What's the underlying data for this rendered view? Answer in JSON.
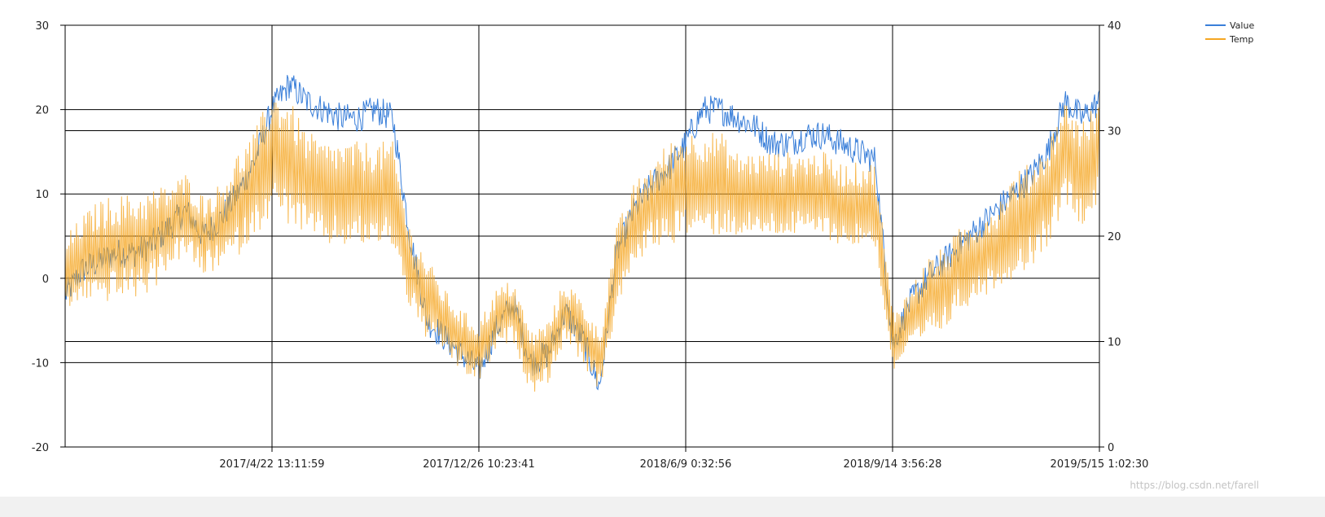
{
  "chart_data": {
    "type": "line",
    "title": "",
    "xlabel": "",
    "ylabel": "",
    "y2label": "",
    "grid": true,
    "legend_position": "top-right",
    "watermark": "https://blog.csdn.net/farell",
    "x_ticks": [
      "2017/4/22 13:11:59",
      "2017/12/26 10:23:41",
      "2018/6/9 0:32:56",
      "2018/9/14 3:56:28",
      "2019/5/15 1:02:30"
    ],
    "y_left": {
      "range": [
        -20,
        30
      ],
      "ticks": [
        "30",
        "20",
        "10",
        "0",
        "-10",
        "-20"
      ]
    },
    "y_right": {
      "range": [
        0,
        40
      ],
      "ticks": [
        "40",
        "30",
        "20",
        "10",
        "0"
      ]
    },
    "series": [
      {
        "name": "Value",
        "axis": "left",
        "color": "#3a7fd9",
        "values": [
          -2,
          1,
          2,
          3,
          3,
          4,
          6,
          8,
          5,
          7,
          10,
          14,
          20,
          23,
          21,
          20,
          19,
          19,
          20,
          19,
          5,
          -5,
          -7,
          -9,
          -11,
          -6,
          -3,
          -10,
          -9,
          -4,
          -7,
          -13,
          3,
          8,
          11,
          13,
          16,
          20,
          20,
          19,
          18,
          16,
          16,
          17,
          17,
          16,
          15,
          14,
          -8,
          -3,
          0,
          2,
          4,
          6,
          8,
          10,
          12,
          15,
          21,
          19,
          21
        ]
      },
      {
        "name": "Temp",
        "axis": "right",
        "color": "#f5a623",
        "mid": [
          16,
          18,
          18.5,
          19,
          19,
          19.5,
          21,
          22,
          20,
          21,
          23,
          25,
          28,
          27,
          25,
          24,
          24,
          24,
          24,
          24,
          17,
          14,
          12,
          10,
          9,
          12,
          13,
          8,
          9,
          13,
          11,
          8,
          17,
          21,
          23,
          24,
          25,
          25,
          25,
          24,
          24,
          24,
          24,
          24,
          24,
          23,
          23,
          23,
          10,
          12,
          14,
          15,
          17,
          18,
          19,
          21,
          22,
          24,
          28,
          26,
          28
        ],
        "amplitude": [
          4,
          4,
          5,
          5,
          5,
          5,
          4,
          4,
          4,
          4,
          5,
          5,
          6,
          6,
          5,
          5,
          5,
          5,
          5,
          5,
          4,
          4,
          3,
          3,
          3,
          3,
          3,
          3,
          3,
          3,
          3,
          3,
          4,
          4,
          4,
          5,
          5,
          5,
          5,
          4,
          4,
          4,
          4,
          4,
          4,
          4,
          4,
          4,
          3,
          3,
          4,
          4,
          4,
          4,
          4,
          5,
          5,
          5,
          5,
          5,
          5
        ]
      }
    ]
  }
}
